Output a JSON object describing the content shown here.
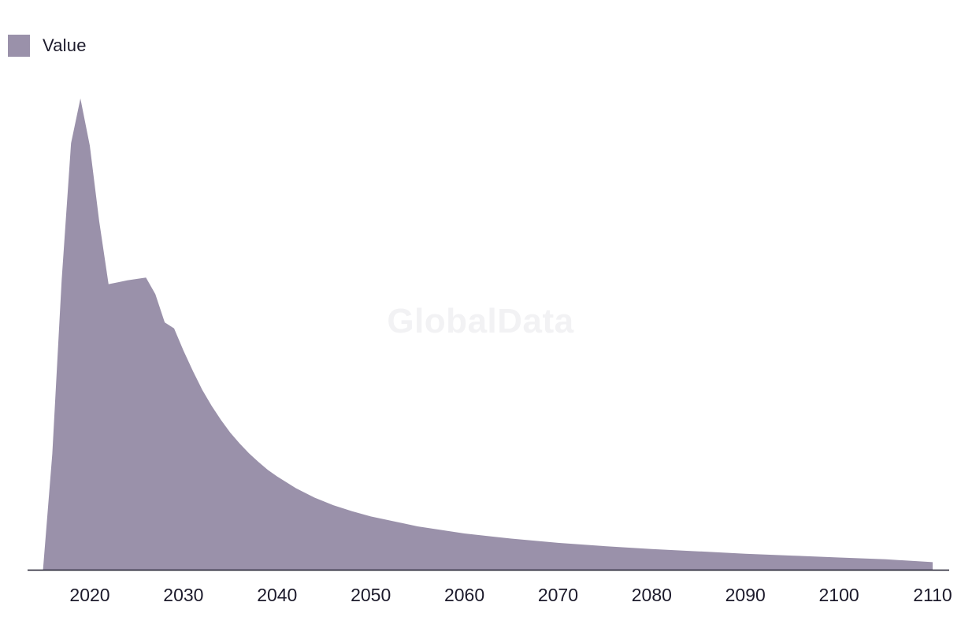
{
  "watermark": "GlobalData",
  "chart_data": {
    "type": "area",
    "legend": {
      "placement": "top-left",
      "entries": [
        "Value"
      ]
    },
    "series": [
      {
        "name": "Value",
        "color": "#9a91aa",
        "x": [
          2015,
          2016,
          2017,
          2018,
          2019,
          2020,
          2021,
          2022,
          2023,
          2024,
          2025,
          2026,
          2027,
          2028,
          2029,
          2030,
          2031,
          2032,
          2033,
          2034,
          2035,
          2036,
          2037,
          2038,
          2039,
          2040,
          2042,
          2044,
          2046,
          2048,
          2050,
          2055,
          2060,
          2065,
          2070,
          2075,
          2080,
          2085,
          2090,
          2095,
          2100,
          2105,
          2110
        ],
        "values": [
          0,
          24.6,
          61.5,
          90.5,
          100,
          90,
          74,
          60.6,
          61,
          61.4,
          61.7,
          62,
          58.5,
          52.5,
          51.2,
          46.5,
          42.2,
          38.2,
          34.8,
          31.8,
          29.1,
          26.8,
          24.7,
          22.9,
          21.2,
          19.8,
          17.3,
          15.3,
          13.7,
          12.4,
          11.3,
          9.2,
          7.7,
          6.6,
          5.7,
          5.0,
          4.4,
          3.9,
          3.4,
          3.0,
          2.6,
          2.2,
          1.6
        ]
      }
    ],
    "xlim": [
      2013,
      2112
    ],
    "ylim": [
      0,
      100
    ],
    "x_ticks": [
      "2020",
      "2030",
      "2040",
      "2050",
      "2060",
      "2070",
      "2080",
      "2090",
      "2100",
      "2110"
    ],
    "grid": false
  }
}
